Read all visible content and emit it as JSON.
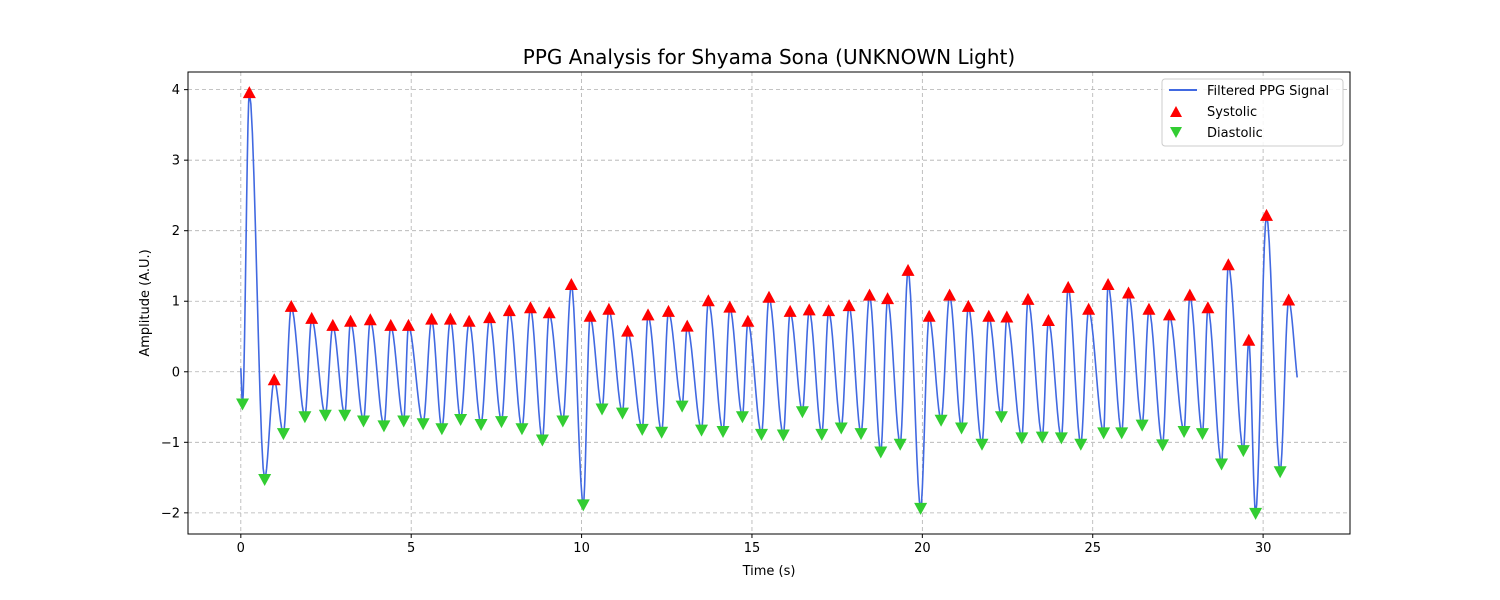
{
  "chart_data": {
    "type": "line",
    "title": "PPG Analysis for Shyama Sona (UNKNOWN Light)",
    "xlabel": "Time (s)",
    "ylabel": "Amplitude (A.U.)",
    "xlim": [
      -1.55,
      32.55
    ],
    "ylim": [
      -2.3,
      4.25
    ],
    "xticks": [
      0,
      5,
      10,
      15,
      20,
      25,
      30
    ],
    "yticks": [
      -2,
      -1,
      0,
      1,
      2,
      3,
      4
    ],
    "grid": true,
    "legend_position": "upper right",
    "colors": {
      "signal": "#4169e1",
      "systolic": "#ff0000",
      "diastolic": "#32cd32"
    },
    "series": [
      {
        "name": "Filtered PPG Signal",
        "kind": "line"
      },
      {
        "name": "Systolic",
        "kind": "marker-up",
        "points": [
          [
            0.25,
            3.95
          ],
          [
            0.98,
            -0.12
          ],
          [
            1.48,
            0.92
          ],
          [
            2.08,
            0.75
          ],
          [
            2.7,
            0.65
          ],
          [
            3.22,
            0.71
          ],
          [
            3.8,
            0.73
          ],
          [
            4.4,
            0.65
          ],
          [
            4.92,
            0.65
          ],
          [
            5.6,
            0.74
          ],
          [
            6.15,
            0.74
          ],
          [
            6.7,
            0.71
          ],
          [
            7.3,
            0.76
          ],
          [
            7.88,
            0.86
          ],
          [
            8.5,
            0.9
          ],
          [
            9.05,
            0.83
          ],
          [
            9.7,
            1.23
          ],
          [
            10.25,
            0.78
          ],
          [
            10.8,
            0.88
          ],
          [
            11.35,
            0.57
          ],
          [
            11.95,
            0.8
          ],
          [
            12.55,
            0.85
          ],
          [
            13.1,
            0.64
          ],
          [
            13.72,
            1.0
          ],
          [
            14.35,
            0.91
          ],
          [
            14.88,
            0.71
          ],
          [
            15.5,
            1.05
          ],
          [
            16.12,
            0.85
          ],
          [
            16.68,
            0.87
          ],
          [
            17.25,
            0.86
          ],
          [
            17.85,
            0.93
          ],
          [
            18.45,
            1.08
          ],
          [
            18.98,
            1.03
          ],
          [
            19.58,
            1.43
          ],
          [
            20.2,
            0.78
          ],
          [
            20.8,
            1.08
          ],
          [
            21.35,
            0.92
          ],
          [
            21.95,
            0.78
          ],
          [
            22.48,
            0.77
          ],
          [
            23.1,
            1.02
          ],
          [
            23.7,
            0.72
          ],
          [
            24.28,
            1.19
          ],
          [
            24.88,
            0.88
          ],
          [
            25.45,
            1.23
          ],
          [
            26.05,
            1.11
          ],
          [
            26.65,
            0.88
          ],
          [
            27.25,
            0.8
          ],
          [
            27.85,
            1.08
          ],
          [
            28.38,
            0.9
          ],
          [
            28.98,
            1.51
          ],
          [
            29.58,
            0.44
          ],
          [
            30.1,
            2.21
          ],
          [
            30.75,
            1.01
          ]
        ]
      },
      {
        "name": "Diastolic",
        "kind": "marker-down",
        "points": [
          [
            0.05,
            -0.45
          ],
          [
            0.7,
            -1.52
          ],
          [
            1.25,
            -0.87
          ],
          [
            1.88,
            -0.63
          ],
          [
            2.48,
            -0.61
          ],
          [
            3.05,
            -0.61
          ],
          [
            3.6,
            -0.69
          ],
          [
            4.2,
            -0.76
          ],
          [
            4.78,
            -0.69
          ],
          [
            5.35,
            -0.73
          ],
          [
            5.9,
            -0.8
          ],
          [
            6.45,
            -0.67
          ],
          [
            7.05,
            -0.74
          ],
          [
            7.65,
            -0.7
          ],
          [
            8.25,
            -0.8
          ],
          [
            8.85,
            -0.96
          ],
          [
            9.45,
            -0.69
          ],
          [
            10.05,
            -1.88
          ],
          [
            10.6,
            -0.52
          ],
          [
            11.2,
            -0.58
          ],
          [
            11.78,
            -0.81
          ],
          [
            12.35,
            -0.85
          ],
          [
            12.95,
            -0.48
          ],
          [
            13.52,
            -0.82
          ],
          [
            14.15,
            -0.84
          ],
          [
            14.72,
            -0.63
          ],
          [
            15.28,
            -0.88
          ],
          [
            15.92,
            -0.89
          ],
          [
            16.48,
            -0.56
          ],
          [
            17.05,
            -0.88
          ],
          [
            17.62,
            -0.79
          ],
          [
            18.2,
            -0.87
          ],
          [
            18.78,
            -1.13
          ],
          [
            19.35,
            -1.02
          ],
          [
            19.95,
            -1.93
          ],
          [
            20.55,
            -0.68
          ],
          [
            21.15,
            -0.79
          ],
          [
            21.75,
            -1.02
          ],
          [
            22.32,
            -0.63
          ],
          [
            22.92,
            -0.93
          ],
          [
            23.52,
            -0.92
          ],
          [
            24.08,
            -0.93
          ],
          [
            24.65,
            -1.02
          ],
          [
            25.32,
            -0.86
          ],
          [
            25.85,
            -0.86
          ],
          [
            26.45,
            -0.75
          ],
          [
            27.05,
            -1.03
          ],
          [
            27.68,
            -0.84
          ],
          [
            28.22,
            -0.87
          ],
          [
            28.78,
            -1.3
          ],
          [
            29.42,
            -1.11
          ],
          [
            29.78,
            -2.0
          ],
          [
            30.5,
            -1.41
          ]
        ]
      }
    ]
  }
}
